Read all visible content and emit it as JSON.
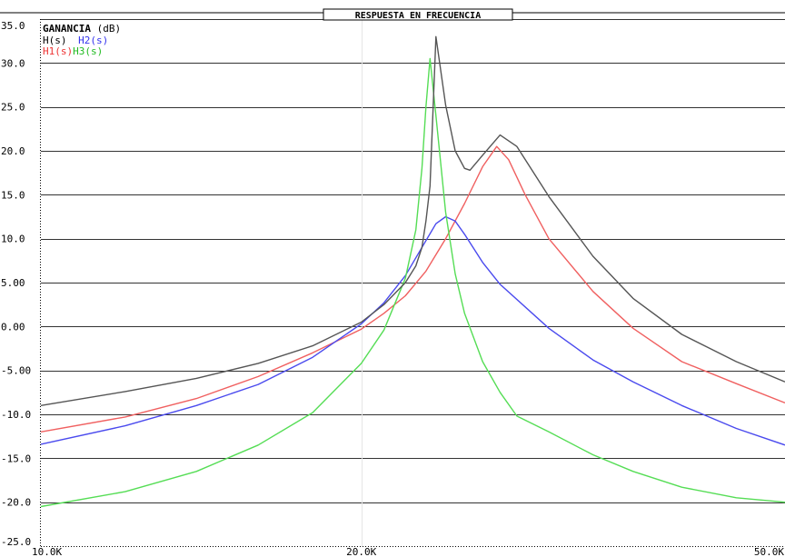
{
  "chart_data": {
    "type": "line",
    "title": "RESPUESTA EN FRECUENCIA",
    "ylabel": "GANANCIA",
    "ylabel_unit": "(dB)",
    "xscale": "log",
    "xlim": [
      10000,
      50000
    ],
    "ylim": [
      -25,
      35
    ],
    "grid": "horizontal",
    "legend_placement": "top-left",
    "y_ticks": [
      35,
      30,
      25,
      20,
      15,
      10,
      5,
      0,
      -5,
      -10,
      -15,
      -20,
      -25
    ],
    "y_tick_labels": [
      "35.0",
      "30.0",
      "25.0",
      "20.0",
      "15.0",
      "10.0",
      "5.00",
      "0.00",
      "-5.00",
      "-10.0",
      "-15.0",
      "-20.0",
      "-25.0"
    ],
    "x_ticks": [
      10000,
      20000,
      50000
    ],
    "x_tick_labels": [
      "10.0K",
      "20.0K",
      "50.0K"
    ],
    "series": [
      {
        "name": "H(s)",
        "color": "#555555",
        "x": [
          10000,
          12000,
          14000,
          16000,
          18000,
          20000,
          21000,
          22000,
          22500,
          22800,
          23000,
          23200,
          23500,
          24000,
          24500,
          25000,
          25300,
          26000,
          27000,
          28000,
          30000,
          33000,
          36000,
          40000,
          45000,
          50000
        ],
        "y": [
          -9,
          -7.4,
          -5.9,
          -4.2,
          -2.2,
          0.5,
          2.5,
          5.0,
          6.9,
          9.0,
          12.0,
          16.0,
          33.0,
          25.2,
          20.0,
          18.0,
          17.8,
          19.5,
          21.8,
          20.5,
          14.8,
          8.0,
          3.2,
          -0.9,
          -4.0,
          -6.3
        ]
      },
      {
        "name": "H2(s)",
        "color": "#4a4aee",
        "x": [
          10000,
          12000,
          14000,
          16000,
          18000,
          20000,
          21000,
          22000,
          22800,
          23500,
          24000,
          24500,
          25000,
          26000,
          27000,
          30000,
          33000,
          36000,
          40000,
          45000,
          50000
        ],
        "y": [
          -13.4,
          -11.3,
          -9,
          -6.6,
          -3.5,
          0.3,
          2.7,
          5.8,
          9.0,
          11.7,
          12.5,
          12.0,
          10.5,
          7.3,
          4.8,
          -0.2,
          -3.8,
          -6.3,
          -9.0,
          -11.6,
          -13.5
        ]
      },
      {
        "name": "H1(s)",
        "color": "#f06060",
        "x": [
          10000,
          12000,
          14000,
          16000,
          18000,
          20000,
          21000,
          22000,
          23000,
          24000,
          25000,
          26000,
          26800,
          27500,
          28500,
          30000,
          33000,
          36000,
          40000,
          45000,
          50000
        ],
        "y": [
          -12,
          -10.3,
          -8.2,
          -5.7,
          -3,
          -0.3,
          1.5,
          3.5,
          6.3,
          10.0,
          14.0,
          18.2,
          20.5,
          19.0,
          15.0,
          10.0,
          4.0,
          -0.2,
          -4.0,
          -6.5,
          -8.7
        ]
      },
      {
        "name": "H3(s)",
        "color": "#55dd55",
        "x": [
          10000,
          12000,
          14000,
          16000,
          18000,
          20000,
          21000,
          22000,
          22500,
          22800,
          23000,
          23200,
          23500,
          24000,
          24500,
          25000,
          26000,
          27000,
          28000,
          30000,
          33000,
          36000,
          40000,
          45000,
          50000
        ],
        "y": [
          -20.5,
          -18.8,
          -16.5,
          -13.5,
          -9.8,
          -4.2,
          -0.4,
          5.5,
          11.0,
          18.0,
          25.0,
          30.5,
          24.0,
          13.0,
          6.0,
          1.5,
          -4.0,
          -7.5,
          -10.2,
          -12.0,
          -14.6,
          -16.5,
          -18.3,
          -19.5,
          -20.0
        ]
      }
    ]
  }
}
